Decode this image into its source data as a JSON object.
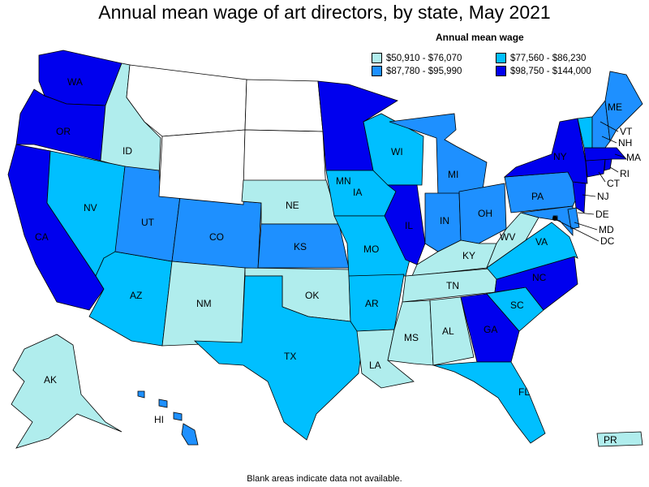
{
  "title": "Annual mean wage of art directors, by state, May 2021",
  "legend": {
    "title": "Annual mean wage",
    "items": [
      {
        "label": "$50,910 - $76,070",
        "color": "#b0eded"
      },
      {
        "label": "$77,560 - $86,230",
        "color": "#00bfff"
      },
      {
        "label": "$87,780 - $95,990",
        "color": "#1e90ff"
      },
      {
        "label": "$98,750 - $144,000",
        "color": "#0000ee"
      }
    ]
  },
  "colors": {
    "none": "#ffffff",
    "c1": "#b0eded",
    "c2": "#00bfff",
    "c3": "#1e90ff",
    "c4": "#0000ee"
  },
  "states": {
    "WA": "c4",
    "OR": "c4",
    "CA": "c4",
    "ID": "c1",
    "NV": "c2",
    "AZ": "c2",
    "UT": "c3",
    "CO": "c3",
    "NM": "c1",
    "MT": "none",
    "WY": "none",
    "ND": "none",
    "SD": "none",
    "NE": "c1",
    "KS": "c3",
    "OK": "c1",
    "TX": "c2",
    "MN": "c4",
    "IA": "c2",
    "MO": "c2",
    "AR": "c2",
    "LA": "c1",
    "WI": "c2",
    "IL": "c4",
    "MI": "c3",
    "IN": "c3",
    "OH": "c3",
    "KY": "c1",
    "TN": "c1",
    "MS": "c1",
    "AL": "c1",
    "GA": "c4",
    "FL": "c2",
    "SC": "c2",
    "NC": "c4",
    "VA": "c2",
    "WV": "c1",
    "PA": "c3",
    "NY": "c4",
    "ME": "c3",
    "VT": "c2",
    "NH": "c3",
    "MA": "c4",
    "RI": "c4",
    "CT": "c4",
    "NJ": "c4",
    "DE": "c3",
    "MD": "c3",
    "DC": "c3",
    "AK": "c1",
    "HI": "c3",
    "PR": "c1"
  },
  "note": "Blank areas indicate data not available."
}
